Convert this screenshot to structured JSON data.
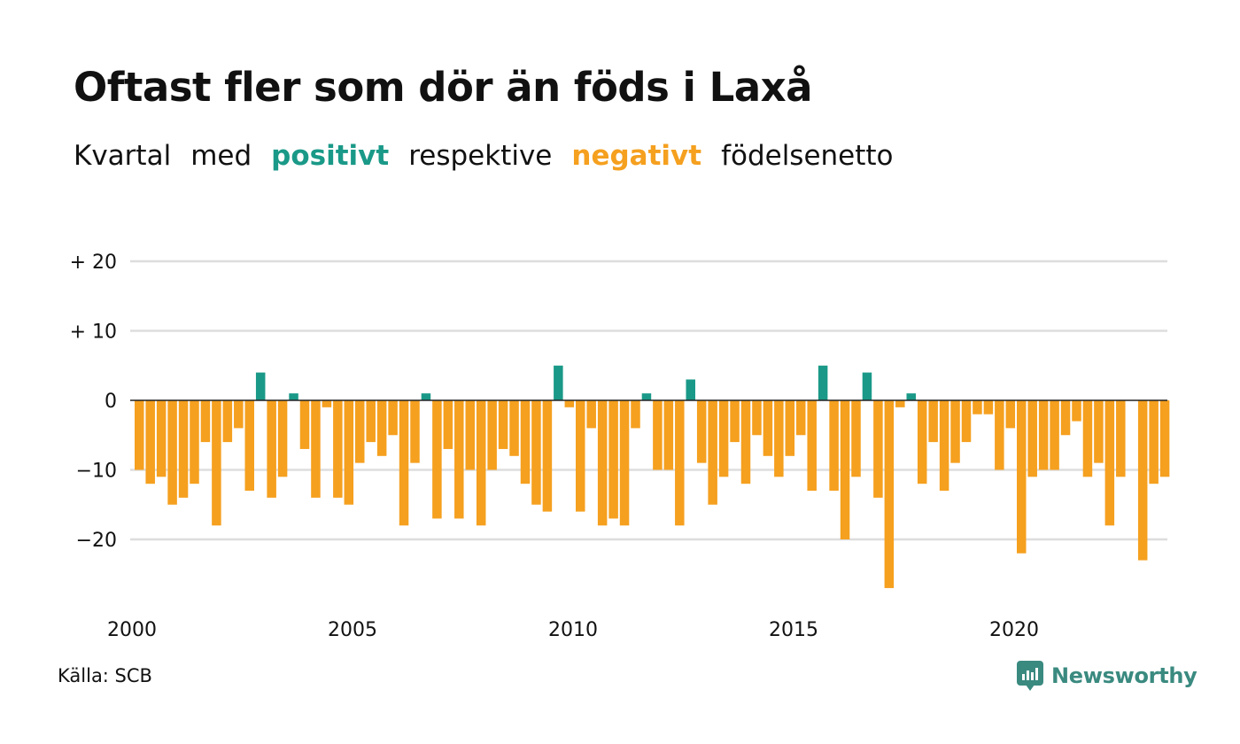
{
  "title": "Oftast fler som dör än föds i Laxå",
  "subtitle": {
    "w1": "Kvartal",
    "w2": "med",
    "positive": "positivt",
    "w3": "respektive",
    "negative": "negativt",
    "w4": "födelsenetto"
  },
  "source": "Källa: SCB",
  "logo": {
    "text": "Newsworthy",
    "icon": "newsworthy-logo-icon"
  },
  "colors": {
    "positive": "#1a9988",
    "negative": "#f5a01f",
    "grid": "#dddddd",
    "zero": "#222222",
    "text": "#111111"
  },
  "chart_data": {
    "type": "bar",
    "y_tick_labels": [
      "+ 20",
      "+ 10",
      "0",
      "−10",
      "−20"
    ],
    "y_ticks": [
      20,
      10,
      0,
      -10,
      -20
    ],
    "ylim": [
      -28,
      20
    ],
    "x_tick_labels": [
      "2000",
      "2005",
      "2010",
      "2015",
      "2020"
    ],
    "x_start": 2000,
    "periods_per_year": 4,
    "grid": true,
    "values": [
      -10,
      -12,
      -11,
      -15,
      -14,
      -12,
      -6,
      -18,
      -6,
      -4,
      -13,
      4,
      -14,
      -11,
      1,
      -7,
      -14,
      -1,
      -14,
      -15,
      -9,
      -6,
      -8,
      -5,
      -18,
      -9,
      1,
      -17,
      -7,
      -17,
      -10,
      -18,
      -10,
      -7,
      -8,
      -12,
      -15,
      -16,
      5,
      -1,
      -16,
      -4,
      -18,
      -17,
      -18,
      -4,
      1,
      -10,
      -10,
      -18,
      3,
      -9,
      -15,
      -11,
      -6,
      -12,
      -5,
      -8,
      -11,
      -8,
      -5,
      -13,
      5,
      -13,
      -20,
      -11,
      4,
      -14,
      -27,
      -1,
      1,
      -12,
      -6,
      -13,
      -9,
      -6,
      -2,
      -2,
      -10,
      -4,
      -22,
      -11,
      -10,
      -10,
      -5,
      -3,
      -11,
      -9,
      -18,
      -11,
      0,
      -23,
      -12,
      -11
    ]
  }
}
